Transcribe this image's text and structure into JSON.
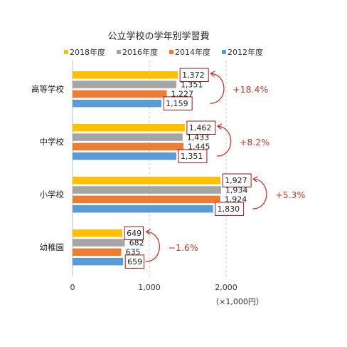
{
  "chart_data": {
    "type": "bar",
    "orientation": "horizontal",
    "title": "公立学校の学年別学習費",
    "unit": "（×1,000円）",
    "categories": [
      "高等学校",
      "中学校",
      "小学校",
      "幼稚園"
    ],
    "series": [
      {
        "name": "2018年度",
        "color": "#ffc000",
        "values": [
          1372,
          1462,
          1927,
          649
        ]
      },
      {
        "name": "2016年度",
        "color": "#a5a5a5",
        "values": [
          1351,
          1433,
          1934,
          682
        ]
      },
      {
        "name": "2014年度",
        "color": "#ed7d31",
        "values": [
          1227,
          1445,
          1924,
          635
        ]
      },
      {
        "name": "2012年度",
        "color": "#5b9bd5",
        "values": [
          1159,
          1351,
          1830,
          659
        ]
      }
    ],
    "data_labels": [
      [
        "1,372",
        "1,462",
        "1,927",
        "649"
      ],
      [
        "1,351",
        "1,433",
        "1,934",
        "682"
      ],
      [
        "1,227",
        "1,445",
        "1,924",
        "635"
      ],
      [
        "1,159",
        "1,351",
        "1,830",
        "659"
      ]
    ],
    "boxed_series": [
      "2018年度",
      "2012年度"
    ],
    "change_labels": [
      "+18.4%",
      "+8.2%",
      "+5.3%",
      "−1.6%"
    ],
    "change_color": "#c0392b",
    "xlim": [
      0,
      2000
    ],
    "xticks": [
      0,
      1000,
      2000
    ],
    "xtick_labels": [
      "0",
      "1,000",
      "2,000"
    ],
    "grid": "vertical-dashed",
    "legend_position": "top"
  }
}
